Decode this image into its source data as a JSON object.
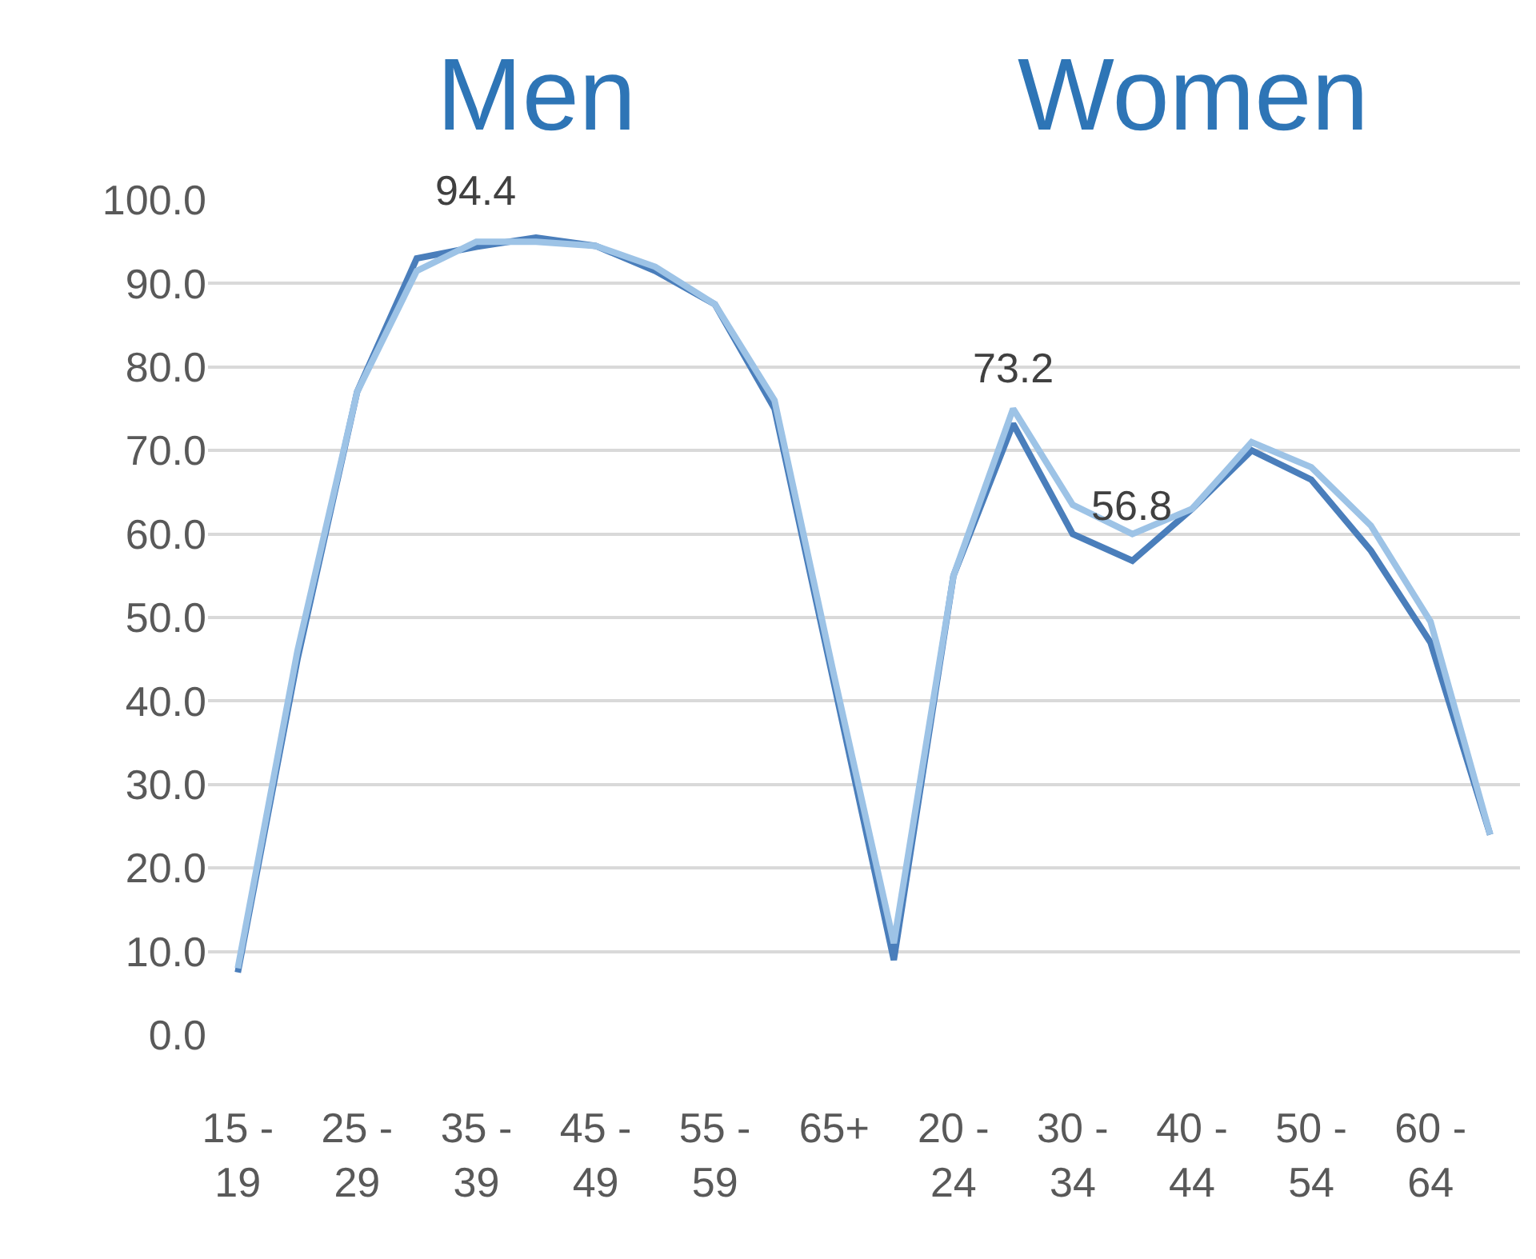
{
  "chart_data": {
    "type": "line",
    "annotations": [
      "Men",
      "Women"
    ],
    "categories": [
      "15 - 19",
      null,
      "25 - 29",
      null,
      "35 - 39",
      null,
      "45 - 49",
      null,
      "55 - 59",
      null,
      "65+",
      null,
      "20 - 24",
      null,
      "30 - 34",
      null,
      "40 - 44",
      null,
      "50 - 54",
      null,
      "60 - 64",
      null
    ],
    "series": [
      {
        "color": "#4a7ebb",
        "values": [
          7.5,
          45,
          77,
          93,
          94.4,
          95.5,
          94.5,
          91.5,
          87.5,
          75,
          42,
          9,
          55,
          73.2,
          60,
          56.8,
          63,
          70,
          66.5,
          58,
          47,
          24
        ],
        "value_labels": [
          null,
          null,
          null,
          null,
          "94.4",
          null,
          null,
          null,
          null,
          null,
          null,
          null,
          null,
          "73.2",
          null,
          "56.8",
          null,
          null,
          null,
          null,
          null,
          null
        ]
      },
      {
        "color": "#9dc3e6",
        "values": [
          8,
          46,
          77,
          91.5,
          95,
          95,
          94.5,
          92,
          87.5,
          76,
          43,
          11,
          55,
          75,
          63.5,
          60,
          63,
          71,
          68,
          61,
          49.5,
          24
        ]
      }
    ],
    "ylim": [
      0,
      100
    ],
    "yticks": [
      {
        "value": 0,
        "label": "0.0"
      },
      {
        "value": 10,
        "label": "10.0"
      },
      {
        "value": 20,
        "label": "20.0"
      },
      {
        "value": 30,
        "label": "30.0"
      },
      {
        "value": 40,
        "label": "40.0"
      },
      {
        "value": 50,
        "label": "50.0"
      },
      {
        "value": 60,
        "label": "60.0"
      },
      {
        "value": 70,
        "label": "70.0"
      },
      {
        "value": 80,
        "label": "80.0"
      },
      {
        "value": 90,
        "label": "90.0"
      },
      {
        "value": 100,
        "label": "100.0"
      }
    ],
    "grid": "y",
    "marker": "none",
    "line_style": "solid"
  }
}
